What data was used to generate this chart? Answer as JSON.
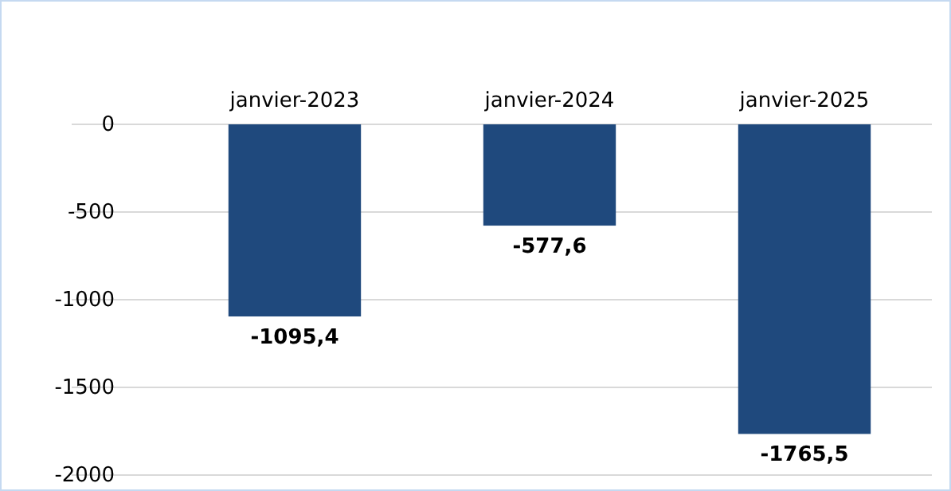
{
  "chart_data": {
    "type": "bar",
    "categories": [
      "janvier-2023",
      "janvier-2024",
      "janvier-2025"
    ],
    "values": [
      -1095.4,
      -577.6,
      -1765.5
    ],
    "color": "#1f497d",
    "value_labels": [
      "-1095,4",
      "-577,6",
      "-1765,5"
    ],
    "ylim": [
      -2000,
      0
    ],
    "yticks": [
      0,
      -500,
      -1000,
      -1500,
      -2000
    ],
    "grid": "y"
  }
}
